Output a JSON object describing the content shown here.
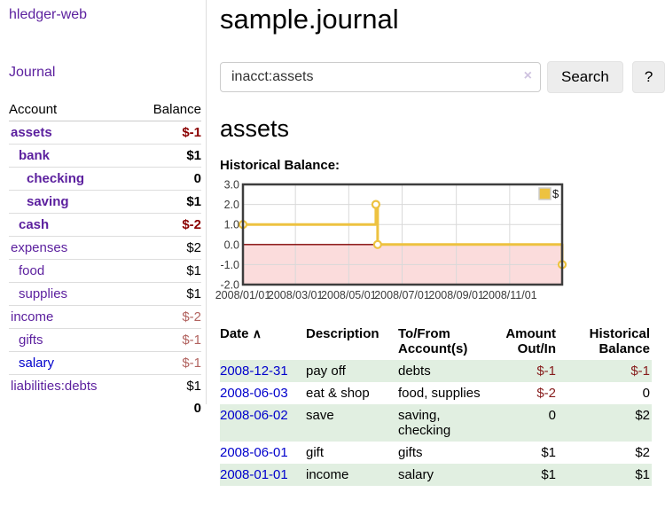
{
  "colors": {
    "accent_purple": "#5b1f9e",
    "link_blue": "#0000cc",
    "negative_strong": "#8b0000",
    "negative_soft": "#b2635f",
    "negative_table": "#861c1c",
    "row_green": "#e1efe1",
    "chart_gold": "#edc240",
    "chart_negative_fill": "#fbdcdc",
    "chart_zero_line": "#800000"
  },
  "sidebar": {
    "app_title": "hledger-web",
    "nav_journal": "Journal",
    "table": {
      "headers": [
        "Account",
        "Balance"
      ],
      "rows": [
        {
          "account": "assets",
          "level": 1,
          "bold": true,
          "balance": "$-1",
          "btype": "neg-strong"
        },
        {
          "account": "bank",
          "level": 2,
          "bold": true,
          "balance": "$1",
          "btype": "pos"
        },
        {
          "account": "checking",
          "level": 3,
          "bold": true,
          "balance": "0",
          "btype": "pos"
        },
        {
          "account": "saving",
          "level": 3,
          "bold": true,
          "balance": "$1",
          "btype": "pos"
        },
        {
          "account": "cash",
          "level": 2,
          "bold": true,
          "balance": "$-2",
          "btype": "neg-strong"
        },
        {
          "account": "expenses",
          "level": 1,
          "bold": false,
          "balance": "$2",
          "btype": "pos"
        },
        {
          "account": "food",
          "level": 2,
          "bold": false,
          "balance": "$1",
          "btype": "pos"
        },
        {
          "account": "supplies",
          "level": 2,
          "bold": false,
          "balance": "$1",
          "btype": "pos"
        },
        {
          "account": "income",
          "level": 1,
          "bold": false,
          "balance": "$-2",
          "btype": "neg-soft"
        },
        {
          "account": "gifts",
          "level": 2,
          "bold": false,
          "balance": "$-1",
          "btype": "neg-soft"
        },
        {
          "account": "salary",
          "level": 2,
          "bold": false,
          "balance": "$-1",
          "btype": "neg-soft",
          "link": "blue"
        },
        {
          "account": "liabilities:debts",
          "level": 1,
          "bold": false,
          "balance": "$1",
          "btype": "pos"
        }
      ],
      "total": "0"
    }
  },
  "main": {
    "title": "sample.journal",
    "search": {
      "value": "inacct:assets",
      "clear_icon": "×",
      "button": "Search",
      "help_button": "?"
    },
    "account_heading": "assets",
    "chart_label": "Historical Balance:",
    "register": {
      "headers": {
        "date": "Date",
        "sort_icon": "∧",
        "description": "Description",
        "accounts": "To/From Account(s)",
        "amount": "Amount Out/In",
        "balance": "Historical Balance"
      },
      "rows": [
        {
          "date": "2008-12-31",
          "description": "pay off",
          "accounts": "debts",
          "amount": "$-1",
          "amount_neg": true,
          "balance": "$-1",
          "balance_neg": true,
          "shade": true
        },
        {
          "date": "2008-06-03",
          "description": "eat & shop",
          "accounts": "food, supplies",
          "amount": "$-2",
          "amount_neg": true,
          "balance": "0",
          "balance_neg": false,
          "shade": false
        },
        {
          "date": "2008-06-02",
          "description": "save",
          "accounts": "saving, checking",
          "amount": "0",
          "amount_neg": false,
          "balance": "$2",
          "balance_neg": false,
          "shade": true
        },
        {
          "date": "2008-06-01",
          "description": "gift",
          "accounts": "gifts",
          "amount": "$1",
          "amount_neg": false,
          "balance": "$2",
          "balance_neg": false,
          "shade": false
        },
        {
          "date": "2008-01-01",
          "description": "income",
          "accounts": "salary",
          "amount": "$1",
          "amount_neg": false,
          "balance": "$1",
          "balance_neg": false,
          "shade": true
        }
      ]
    }
  },
  "chart_data": {
    "type": "line",
    "title": "Historical Balance:",
    "step": true,
    "series": [
      {
        "name": "$",
        "color": "#edc240",
        "points": [
          [
            "2008-01-01",
            1
          ],
          [
            "2008-06-01",
            2
          ],
          [
            "2008-06-03",
            0
          ],
          [
            "2008-12-31",
            -1
          ]
        ]
      }
    ],
    "x_ticks": [
      "2008/01/01",
      "2008/03/01",
      "2008/05/01",
      "2008/07/01",
      "2008/09/01",
      "2008/11/01"
    ],
    "y_ticks": [
      3.0,
      2.0,
      1.0,
      0.0,
      -1.0,
      -2.0
    ],
    "xlim": [
      "2008-01-01",
      "2008-12-31"
    ],
    "ylim": [
      -2,
      3
    ],
    "grid": true,
    "legend_position": "top-right",
    "legend_label": "$",
    "negative_fill": "#fbdcdc",
    "zero_line_color": "#800000",
    "border_color": "#3d3d3d"
  }
}
